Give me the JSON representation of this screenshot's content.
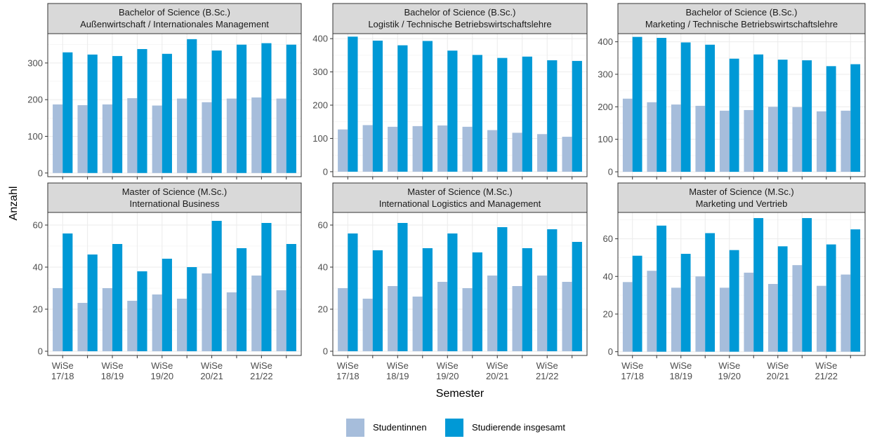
{
  "chart": {
    "xlabel": "Semester",
    "ylabel": "Anzahl",
    "legend": [
      "Studentinnen",
      "Studierende insgesamt"
    ],
    "legend_position": "bottom",
    "colors": {
      "Studentinnen": "#a6bddb",
      "Studierende insgesamt": "#0099d6"
    },
    "x_tick_labels": [
      {
        "line1": "WiSe",
        "line2": "17/18"
      },
      {
        "line1": "WiSe",
        "line2": "18/19"
      },
      {
        "line1": "WiSe",
        "line2": "19/20"
      },
      {
        "line1": "WiSe",
        "line2": "20/21"
      },
      {
        "line1": "WiSe",
        "line2": "21/22"
      }
    ]
  },
  "chart_data": [
    {
      "type": "bar",
      "title_line1": "Bachelor of Science (B.Sc.)",
      "title_line2": "Außenwirtschaft / Internationales Management",
      "ylim": [
        -10,
        380
      ],
      "yticks": [
        0,
        100,
        200,
        300
      ],
      "series": [
        {
          "name": "Studentinnen",
          "values": [
            187,
            185,
            187,
            204,
            184,
            203,
            193,
            203,
            206,
            203
          ]
        },
        {
          "name": "Studierende insgesamt",
          "values": [
            329,
            323,
            319,
            338,
            325,
            365,
            334,
            350,
            354,
            350
          ]
        }
      ]
    },
    {
      "type": "bar",
      "title_line1": "Bachelor of Science (B.Sc.)",
      "title_line2": "Logistik / Technische Betriebswirtschaftslehre",
      "ylim": [
        -15,
        415
      ],
      "yticks": [
        0,
        100,
        200,
        300,
        400
      ],
      "series": [
        {
          "name": "Studentinnen",
          "values": [
            127,
            140,
            135,
            137,
            139,
            135,
            125,
            117,
            113,
            105
          ]
        },
        {
          "name": "Studierende insgesamt",
          "values": [
            406,
            394,
            380,
            393,
            364,
            351,
            342,
            346,
            335,
            333
          ]
        }
      ]
    },
    {
      "type": "bar",
      "title_line1": "Bachelor of Science (B.Sc.)",
      "title_line2": "Marketing / Technische Betriebswirtschaftslehre",
      "ylim": [
        -15,
        425
      ],
      "yticks": [
        0,
        100,
        200,
        300,
        400
      ],
      "series": [
        {
          "name": "Studentinnen",
          "values": [
            225,
            214,
            207,
            203,
            188,
            190,
            200,
            199,
            186,
            188
          ]
        },
        {
          "name": "Studierende insgesamt",
          "values": [
            415,
            412,
            398,
            391,
            348,
            361,
            345,
            343,
            325,
            331
          ]
        }
      ]
    },
    {
      "type": "bar",
      "title_line1": "Master of Science (M.Sc.)",
      "title_line2": "International Business",
      "ylim": [
        -2,
        66
      ],
      "yticks": [
        0,
        20,
        40,
        60
      ],
      "series": [
        {
          "name": "Studentinnen",
          "values": [
            30,
            23,
            30,
            24,
            27,
            25,
            37,
            28,
            36,
            29
          ]
        },
        {
          "name": "Studierende insgesamt",
          "values": [
            56,
            46,
            51,
            38,
            44,
            40,
            62,
            49,
            61,
            51
          ]
        }
      ]
    },
    {
      "type": "bar",
      "title_line1": "Master of Science (M.Sc.)",
      "title_line2": "International Logistics and Management",
      "ylim": [
        -2,
        66
      ],
      "yticks": [
        0,
        20,
        40,
        60
      ],
      "series": [
        {
          "name": "Studentinnen",
          "values": [
            30,
            25,
            31,
            26,
            33,
            30,
            36,
            31,
            36,
            33
          ]
        },
        {
          "name": "Studierende insgesamt",
          "values": [
            56,
            48,
            61,
            49,
            56,
            47,
            59,
            49,
            58,
            52
          ]
        }
      ]
    },
    {
      "type": "bar",
      "title_line1": "Master of Science (M.Sc.)",
      "title_line2": "Marketing und Vertrieb",
      "ylim": [
        -2,
        74
      ],
      "yticks": [
        0,
        20,
        40,
        60
      ],
      "series": [
        {
          "name": "Studentinnen",
          "values": [
            37,
            43,
            34,
            40,
            34,
            42,
            36,
            46,
            35,
            41
          ]
        },
        {
          "name": "Studierende insgesamt",
          "values": [
            51,
            67,
            52,
            63,
            54,
            71,
            56,
            71,
            57,
            65
          ]
        }
      ]
    }
  ]
}
